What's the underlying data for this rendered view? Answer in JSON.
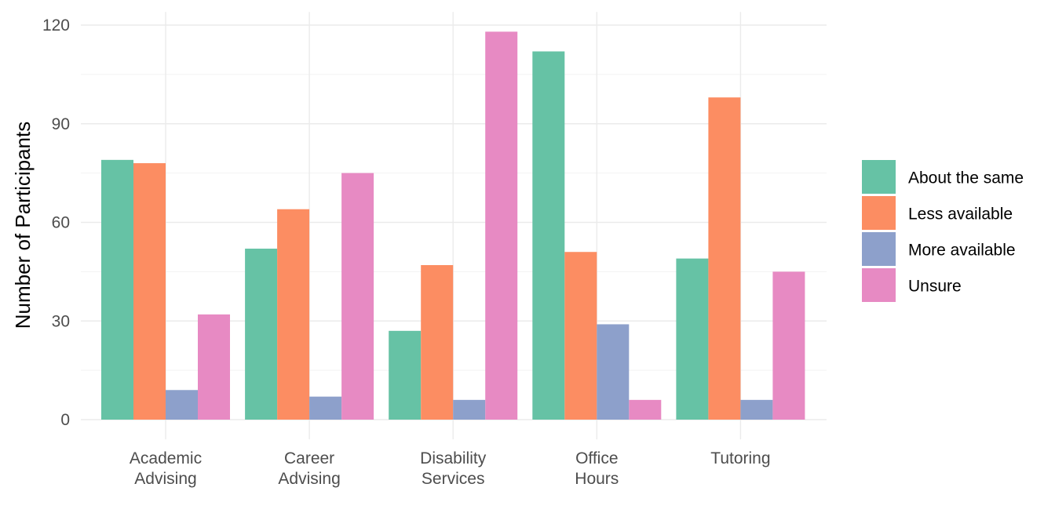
{
  "chart_data": {
    "type": "bar",
    "title": "",
    "xlabel": "",
    "ylabel": "Number of Participants",
    "categories": [
      [
        "Academic",
        "Advising"
      ],
      [
        "Career",
        "Advising"
      ],
      [
        "Disability",
        "Services"
      ],
      [
        "Office",
        "Hours"
      ],
      [
        "Tutoring"
      ]
    ],
    "series": [
      {
        "name": "About the same",
        "color": "#66c2a5",
        "values": [
          79,
          52,
          27,
          112,
          49
        ]
      },
      {
        "name": "Less available",
        "color": "#fc8d62",
        "values": [
          78,
          64,
          47,
          51,
          98
        ]
      },
      {
        "name": "More available",
        "color": "#8da0cb",
        "values": [
          9,
          7,
          6,
          29,
          6
        ]
      },
      {
        "name": "Unsure",
        "color": "#e78ac3",
        "values": [
          32,
          75,
          118,
          6,
          45
        ]
      }
    ],
    "y_ticks": [
      0,
      30,
      60,
      90,
      120
    ],
    "y_tick_labels": [
      "0",
      "30",
      "60",
      "90",
      "120"
    ],
    "ylim": [
      -6,
      124
    ],
    "grid": true,
    "legend_position": "right"
  }
}
